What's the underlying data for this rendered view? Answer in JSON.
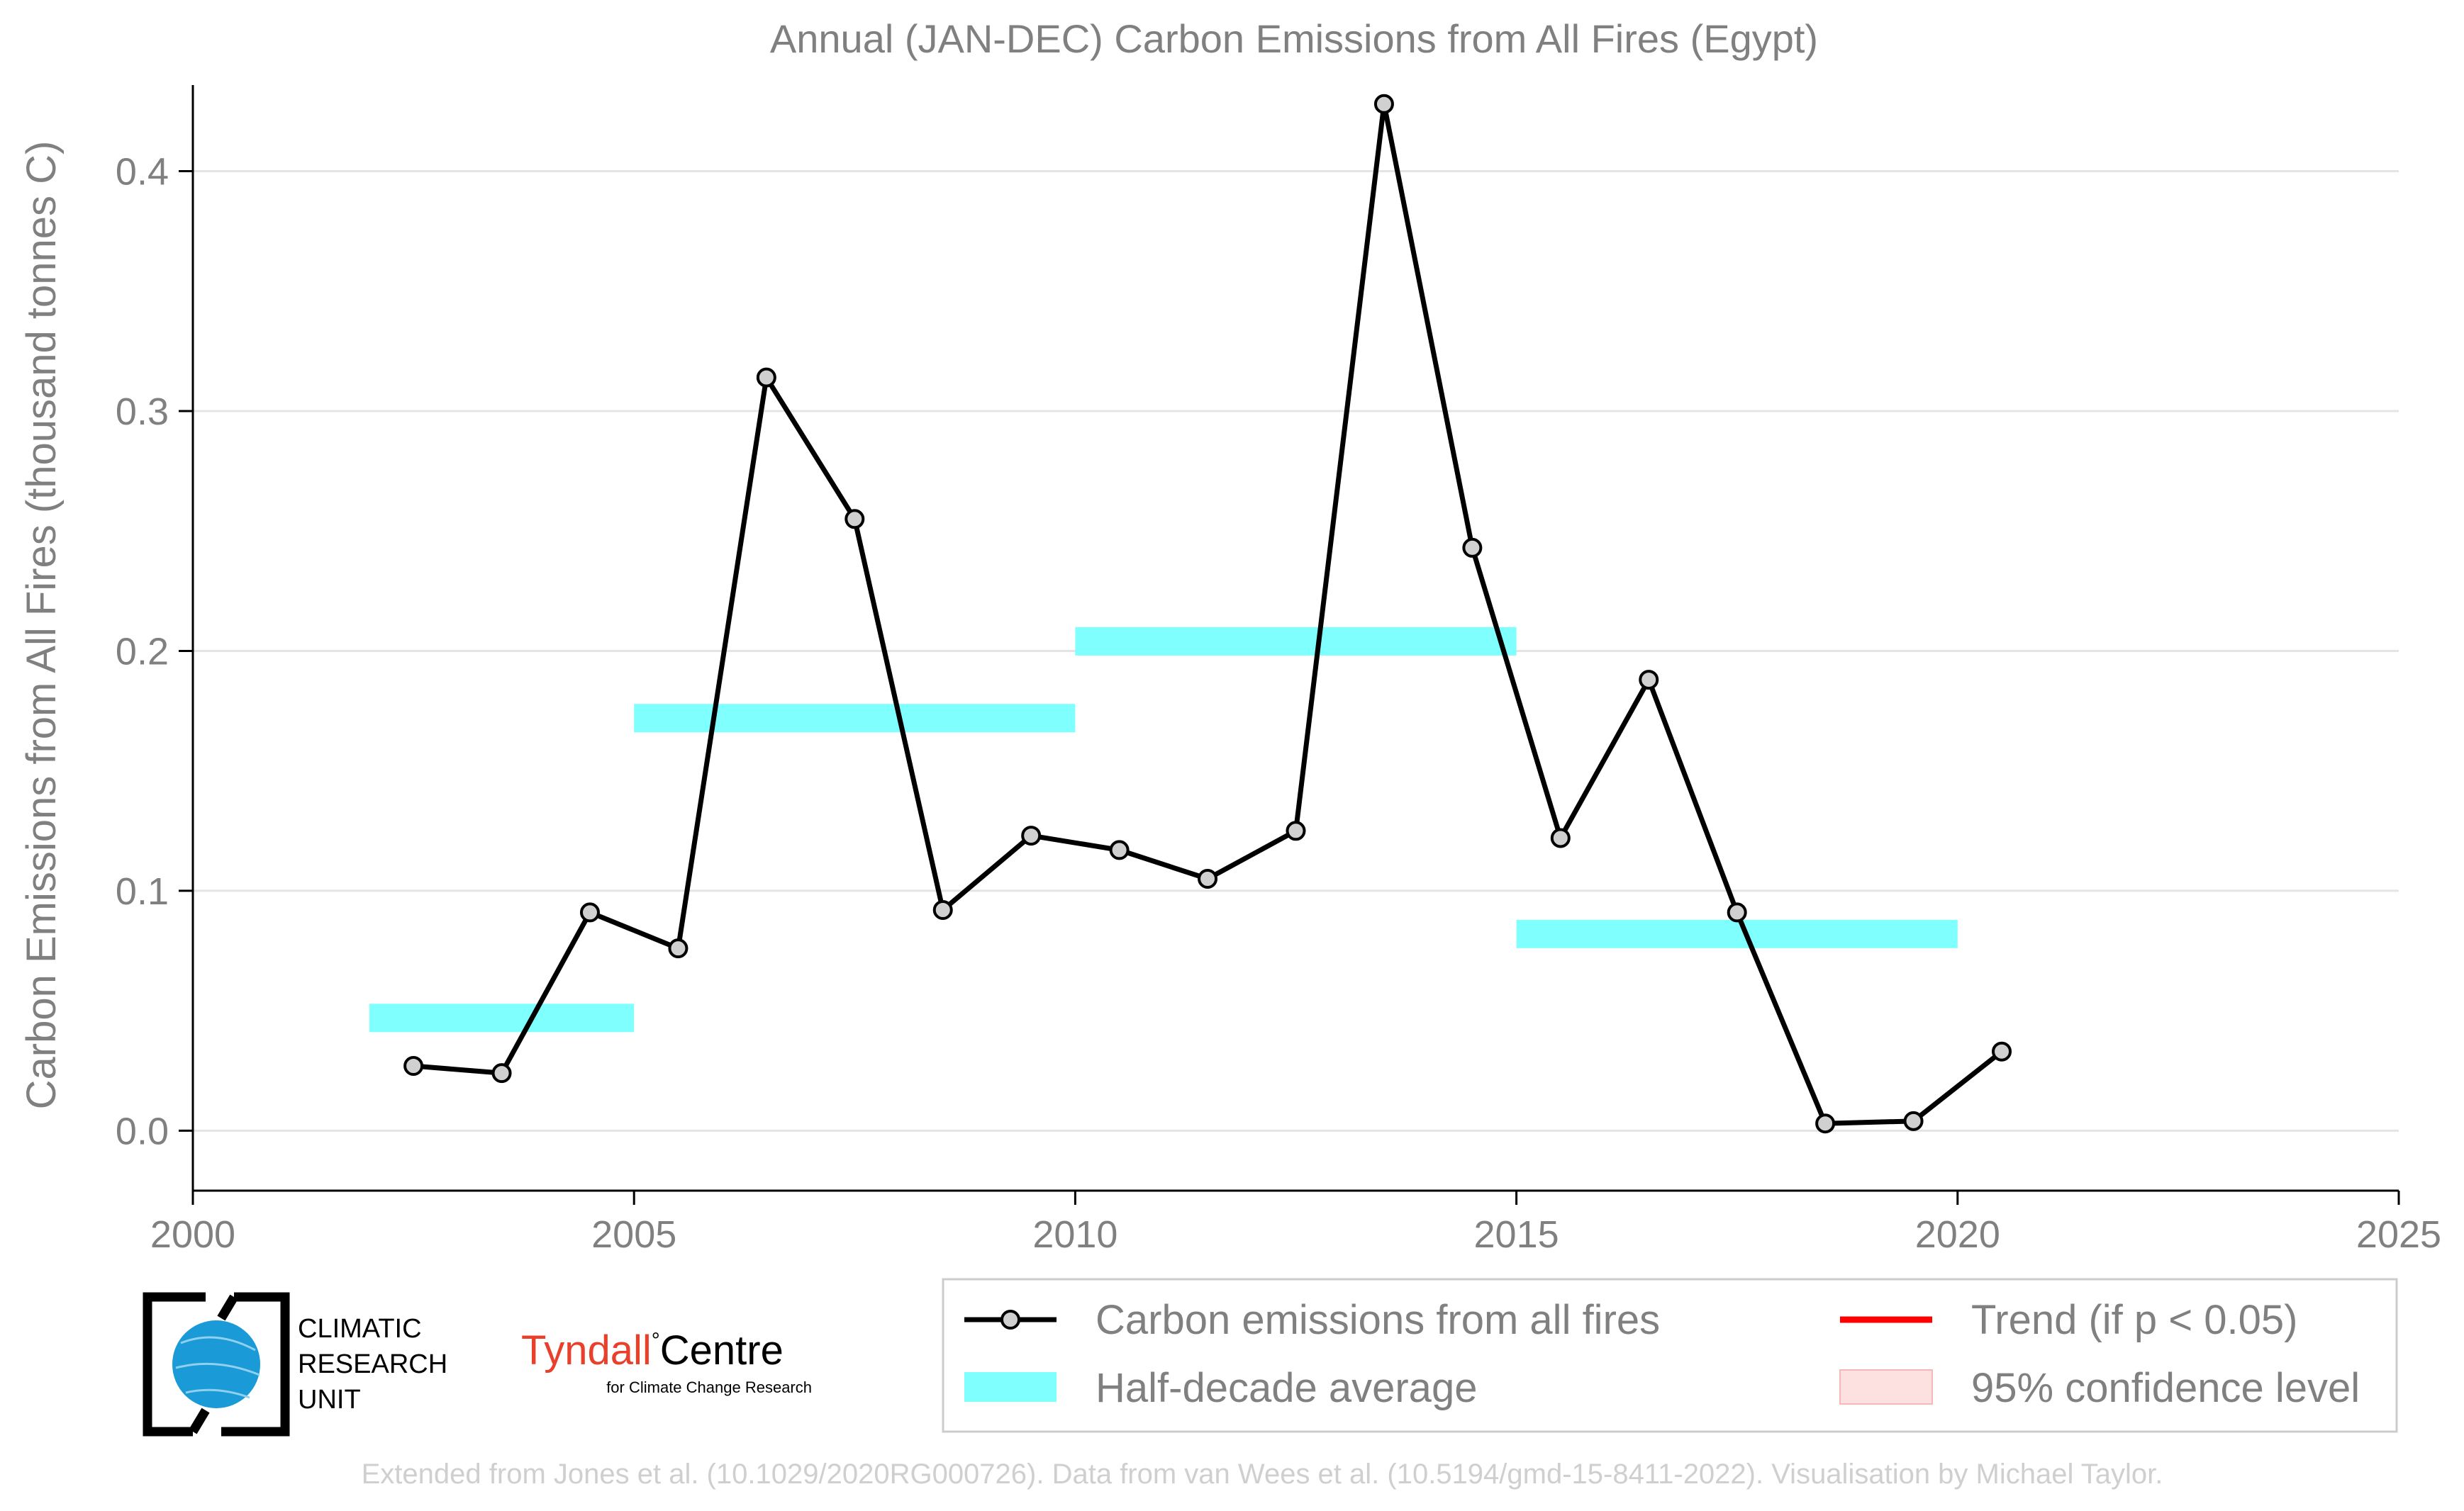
{
  "colors": {
    "line": "#000000",
    "marker_fill": "#d0d0d0",
    "half_decade": "#80ffff",
    "trend": "#ff0000",
    "confidence": "#fde0e0",
    "grid": "#e4e4e4",
    "text": "#808080",
    "credit": "#cfcfcf",
    "tyndall": "#e8402a",
    "cru_globe": "#1a9ad6"
  },
  "chart_data": {
    "type": "line",
    "title": "Annual (JAN-DEC) Carbon Emissions from All Fires (Egypt)",
    "xlabel": "",
    "ylabel": "Carbon Emissions from All Fires (thousand tonnes C)",
    "xlim": [
      2000,
      2025
    ],
    "ylim": [
      -0.025,
      0.43
    ],
    "x_ticks": [
      2000,
      2005,
      2010,
      2015,
      2020,
      2025
    ],
    "y_ticks": [
      0.0,
      0.1,
      0.2,
      0.3,
      0.4
    ],
    "x_tick_labels": [
      "2000",
      "2005",
      "2010",
      "2015",
      "2020",
      "2025"
    ],
    "y_tick_labels": [
      "0.0",
      "0.1",
      "0.2",
      "0.3",
      "0.4"
    ],
    "grid": "horizontal",
    "legend_position": "bottom-right",
    "series": [
      {
        "name": "Carbon emissions from all fires",
        "type": "line-marker",
        "x": [
          2002.5,
          2003.5,
          2004.5,
          2005.5,
          2006.5,
          2007.5,
          2008.5,
          2009.5,
          2010.5,
          2011.5,
          2012.5,
          2013.5,
          2014.5,
          2015.5,
          2016.5,
          2017.5,
          2018.5,
          2019.5,
          2020.5
        ],
        "y": [
          0.027,
          0.024,
          0.091,
          0.076,
          0.314,
          0.255,
          0.092,
          0.123,
          0.117,
          0.105,
          0.125,
          0.428,
          0.243,
          0.122,
          0.188,
          0.091,
          0.003,
          0.004,
          0.033
        ]
      },
      {
        "name": "Half-decade average",
        "type": "segments",
        "segments": [
          {
            "x0": 2002,
            "x1": 2005,
            "y": 0.047
          },
          {
            "x0": 2005,
            "x1": 2010,
            "y": 0.172
          },
          {
            "x0": 2010,
            "x1": 2015,
            "y": 0.204
          },
          {
            "x0": 2015,
            "x1": 2020,
            "y": 0.082
          }
        ]
      }
    ],
    "legend": [
      {
        "label": "Carbon emissions from all fires",
        "kind": "line-marker"
      },
      {
        "label": "Trend (if p < 0.05)",
        "kind": "trend-line"
      },
      {
        "label": "Half-decade average",
        "kind": "band"
      },
      {
        "label": "95% confidence level",
        "kind": "confidence-box"
      }
    ]
  },
  "logos": {
    "cru_line1": "CLIMATIC",
    "cru_line2": "RESEARCH",
    "cru_line3": "UNIT",
    "tyndall_name": "Tyndall",
    "tyndall_degree": "°",
    "tyndall_centre": "Centre",
    "tyndall_sub": "for Climate Change Research"
  },
  "credit": "Extended from Jones et al. (10.1029/2020RG000726). Data from van Wees et al. (10.5194/gmd-15-8411-2022). Visualisation by Michael Taylor."
}
